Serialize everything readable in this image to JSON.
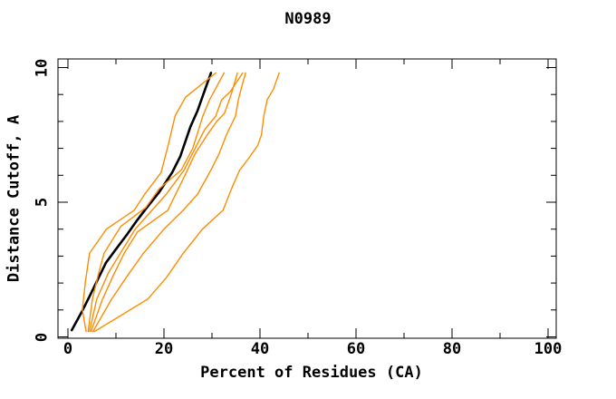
{
  "title": "N0989",
  "colors": {
    "background": "#ffffff",
    "frame": "#000000",
    "reference_line": "#000000",
    "prediction_line": "#ff8c00"
  },
  "chart_data": {
    "type": "line",
    "title": "N0989",
    "xlabel": "Percent of Residues (CA)",
    "ylabel": "Distance Cutoff, A",
    "xlim": [
      0,
      100
    ],
    "ylim": [
      0,
      10
    ],
    "x_ticks_major": [
      0,
      20,
      40,
      60,
      80,
      100
    ],
    "x_ticks_minor": [
      10,
      30,
      50,
      70,
      90
    ],
    "y_ticks_major": [
      0,
      5,
      10
    ],
    "y_ticks_minor": [
      1,
      2,
      3,
      4,
      6,
      7,
      8,
      9
    ],
    "grid": false,
    "legend": "none",
    "ticks_mirrored": true,
    "series": [
      {
        "name": "reference-black",
        "color": "#000000",
        "width": 2.6,
        "points": [
          [
            0.8,
            0.25
          ],
          [
            2.8,
            0.9
          ],
          [
            4.2,
            1.4
          ],
          [
            7.9,
            2.75
          ],
          [
            10.4,
            3.35
          ],
          [
            12.3,
            3.8
          ],
          [
            14.5,
            4.35
          ],
          [
            16.2,
            4.75
          ],
          [
            18.9,
            5.35
          ],
          [
            21.7,
            6.1
          ],
          [
            23.4,
            6.7
          ],
          [
            25.5,
            7.8
          ],
          [
            27.0,
            8.4
          ],
          [
            28.5,
            9.15
          ],
          [
            29.8,
            9.8
          ]
        ]
      },
      {
        "name": "prediction-1",
        "color": "#ff8c00",
        "width": 1.4,
        "points": [
          [
            3.8,
            0.2
          ],
          [
            3.0,
            1.0
          ],
          [
            3.6,
            2.0
          ],
          [
            4.5,
            3.1
          ],
          [
            8.0,
            4.0
          ],
          [
            13.8,
            4.7
          ],
          [
            16.0,
            5.3
          ],
          [
            19.4,
            6.1
          ],
          [
            21.0,
            7.2
          ],
          [
            22.3,
            8.2
          ],
          [
            24.5,
            8.9
          ],
          [
            28.0,
            9.4
          ],
          [
            30.8,
            9.8
          ]
        ]
      },
      {
        "name": "prediction-2",
        "color": "#ff8c00",
        "width": 1.4,
        "points": [
          [
            4.2,
            0.2
          ],
          [
            5.1,
            1.4
          ],
          [
            6.3,
            2.3
          ],
          [
            7.5,
            3.1
          ],
          [
            11.0,
            4.1
          ],
          [
            16.2,
            4.8
          ],
          [
            19.0,
            5.5
          ],
          [
            23.6,
            6.2
          ],
          [
            26.0,
            7.0
          ],
          [
            28.1,
            8.2
          ],
          [
            29.5,
            8.8
          ],
          [
            32.5,
            9.8
          ]
        ]
      },
      {
        "name": "prediction-3",
        "color": "#ff8c00",
        "width": 1.4,
        "points": [
          [
            4.5,
            0.2
          ],
          [
            6.0,
            1.4
          ],
          [
            8.5,
            2.4
          ],
          [
            10.9,
            3.1
          ],
          [
            14.0,
            4.0
          ],
          [
            17.5,
            4.7
          ],
          [
            20.5,
            5.3
          ],
          [
            24.2,
            6.2
          ],
          [
            26.5,
            7.0
          ],
          [
            28.5,
            7.7
          ],
          [
            30.8,
            8.2
          ],
          [
            32.0,
            8.8
          ],
          [
            33.8,
            9.1
          ],
          [
            36.4,
            9.8
          ]
        ]
      },
      {
        "name": "prediction-4",
        "color": "#ff8c00",
        "width": 1.4,
        "points": [
          [
            4.8,
            0.2
          ],
          [
            7.2,
            1.4
          ],
          [
            9.5,
            2.3
          ],
          [
            11.7,
            3.1
          ],
          [
            14.5,
            3.9
          ],
          [
            20.8,
            4.7
          ],
          [
            24.9,
            6.2
          ],
          [
            26.5,
            6.8
          ],
          [
            29.0,
            7.5
          ],
          [
            31.0,
            8.0
          ],
          [
            32.6,
            8.3
          ],
          [
            34.0,
            9.0
          ],
          [
            35.3,
            9.8
          ]
        ]
      },
      {
        "name": "prediction-5",
        "color": "#ff8c00",
        "width": 1.4,
        "points": [
          [
            5.2,
            0.2
          ],
          [
            9.1,
            1.4
          ],
          [
            12.5,
            2.3
          ],
          [
            15.7,
            3.1
          ],
          [
            20.0,
            4.0
          ],
          [
            24.0,
            4.7
          ],
          [
            27.0,
            5.3
          ],
          [
            29.8,
            6.2
          ],
          [
            31.5,
            6.8
          ],
          [
            33.0,
            7.5
          ],
          [
            34.9,
            8.2
          ],
          [
            35.5,
            8.8
          ],
          [
            36.2,
            9.3
          ],
          [
            37.0,
            9.8
          ]
        ]
      },
      {
        "name": "prediction-6",
        "color": "#ff8c00",
        "width": 1.4,
        "points": [
          [
            5.5,
            0.2
          ],
          [
            16.6,
            1.4
          ],
          [
            20.5,
            2.2
          ],
          [
            24.0,
            3.1
          ],
          [
            28.0,
            4.0
          ],
          [
            32.3,
            4.7
          ],
          [
            34.3,
            5.6
          ],
          [
            35.8,
            6.2
          ],
          [
            37.5,
            6.6
          ],
          [
            39.5,
            7.1
          ],
          [
            40.3,
            7.5
          ],
          [
            40.8,
            8.2
          ],
          [
            41.5,
            8.8
          ],
          [
            42.8,
            9.2
          ],
          [
            44.0,
            9.8
          ]
        ]
      }
    ]
  }
}
